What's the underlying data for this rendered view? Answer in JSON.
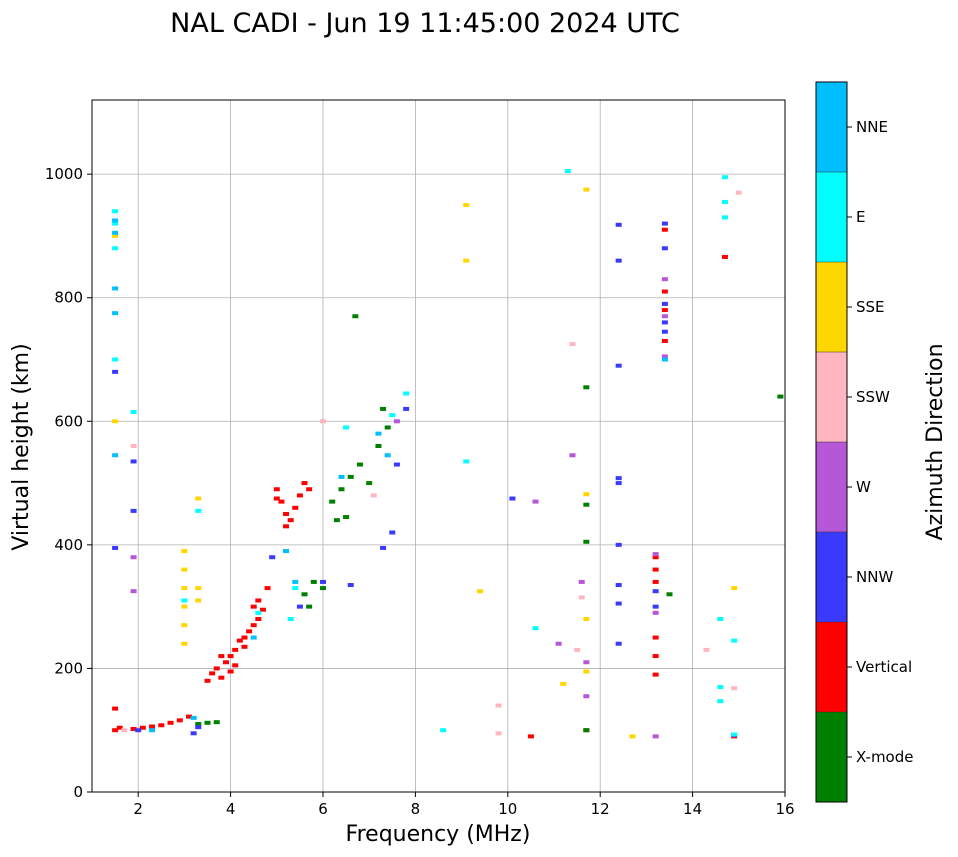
{
  "chart_data": {
    "type": "scatter",
    "title": "NAL CADI - Jun 19 11:45:00 2024 UTC",
    "xlabel": "Frequency (MHz)",
    "ylabel": "Virtual height (km)",
    "xlim": [
      1,
      16
    ],
    "ylim": [
      0,
      1120
    ],
    "xticks": [
      2,
      4,
      6,
      8,
      10,
      12,
      14,
      16
    ],
    "yticks": [
      0,
      200,
      400,
      600,
      800,
      1000
    ],
    "grid": true,
    "colorbar": {
      "label": "Azimuth Direction",
      "categories": [
        {
          "name": "X-mode",
          "color": "#008000"
        },
        {
          "name": "Vertical",
          "color": "#ff0000"
        },
        {
          "name": "NNW",
          "color": "#3a3aff"
        },
        {
          "name": "W",
          "color": "#b557d6"
        },
        {
          "name": "SSW",
          "color": "#ffb6c1"
        },
        {
          "name": "SSE",
          "color": "#ffd700"
        },
        {
          "name": "E",
          "color": "#00ffff"
        },
        {
          "name": "NNE",
          "color": "#00bfff"
        }
      ]
    },
    "series": [
      {
        "name": "Vertical",
        "points": [
          [
            1.5,
            100
          ],
          [
            1.6,
            104
          ],
          [
            1.5,
            135
          ],
          [
            1.9,
            102
          ],
          [
            2.1,
            104
          ],
          [
            2.3,
            106
          ],
          [
            2.5,
            108
          ],
          [
            2.7,
            112
          ],
          [
            2.9,
            116
          ],
          [
            3.1,
            122
          ],
          [
            3.5,
            180
          ],
          [
            3.6,
            192
          ],
          [
            3.7,
            200
          ],
          [
            3.8,
            185
          ],
          [
            3.9,
            210
          ],
          [
            4.0,
            220
          ],
          [
            4.1,
            230
          ],
          [
            4.0,
            195
          ],
          [
            4.2,
            245
          ],
          [
            4.3,
            235
          ],
          [
            4.4,
            260
          ],
          [
            4.5,
            270
          ],
          [
            4.6,
            280
          ],
          [
            4.5,
            300
          ],
          [
            4.6,
            310
          ],
          [
            4.7,
            295
          ],
          [
            4.8,
            330
          ],
          [
            4.3,
            250
          ],
          [
            3.8,
            220
          ],
          [
            4.1,
            205
          ],
          [
            5.0,
            490
          ],
          [
            5.1,
            470
          ],
          [
            5.2,
            450
          ],
          [
            5.3,
            440
          ],
          [
            5.4,
            460
          ],
          [
            5.5,
            480
          ],
          [
            5.6,
            500
          ],
          [
            5.0,
            475
          ],
          [
            5.2,
            430
          ],
          [
            5.7,
            490
          ],
          [
            13.2,
            190
          ],
          [
            13.2,
            220
          ],
          [
            13.2,
            250
          ],
          [
            13.2,
            340
          ],
          [
            13.2,
            360
          ],
          [
            13.2,
            380
          ],
          [
            13.4,
            730
          ],
          [
            13.4,
            780
          ],
          [
            13.4,
            810
          ],
          [
            13.4,
            910
          ],
          [
            14.7,
            866
          ],
          [
            14.9,
            90
          ],
          [
            11.7,
            100
          ],
          [
            10.5,
            90
          ]
        ]
      },
      {
        "name": "X-mode",
        "points": [
          [
            3.3,
            110
          ],
          [
            3.5,
            112
          ],
          [
            3.7,
            113
          ],
          [
            5.6,
            320
          ],
          [
            5.8,
            340
          ],
          [
            5.7,
            300
          ],
          [
            6.3,
            440
          ],
          [
            6.5,
            445
          ],
          [
            6.2,
            470
          ],
          [
            6.4,
            490
          ],
          [
            6.6,
            510
          ],
          [
            6.8,
            530
          ],
          [
            7.0,
            500
          ],
          [
            7.2,
            560
          ],
          [
            7.4,
            590
          ],
          [
            6.0,
            330
          ],
          [
            6.7,
            770
          ],
          [
            7.3,
            620
          ],
          [
            11.7,
            100
          ],
          [
            11.7,
            405
          ],
          [
            11.7,
            465
          ],
          [
            11.7,
            655
          ],
          [
            13.5,
            320
          ],
          [
            15.9,
            640
          ]
        ]
      },
      {
        "name": "NNW",
        "points": [
          [
            1.5,
            395
          ],
          [
            1.5,
            680
          ],
          [
            1.9,
            455
          ],
          [
            1.9,
            535
          ],
          [
            2.0,
            100
          ],
          [
            3.2,
            95
          ],
          [
            3.3,
            105
          ],
          [
            4.9,
            380
          ],
          [
            5.5,
            300
          ],
          [
            6.0,
            340
          ],
          [
            6.6,
            335
          ],
          [
            7.3,
            395
          ],
          [
            7.5,
            420
          ],
          [
            7.6,
            530
          ],
          [
            7.8,
            620
          ],
          [
            10.1,
            475
          ],
          [
            12.4,
            240
          ],
          [
            12.4,
            305
          ],
          [
            12.4,
            335
          ],
          [
            12.4,
            400
          ],
          [
            12.4,
            500
          ],
          [
            12.4,
            508
          ],
          [
            12.4,
            690
          ],
          [
            12.4,
            860
          ],
          [
            12.4,
            918
          ],
          [
            13.2,
            300
          ],
          [
            13.2,
            325
          ],
          [
            13.4,
            745
          ],
          [
            13.4,
            760
          ],
          [
            13.4,
            790
          ],
          [
            13.4,
            880
          ],
          [
            13.4,
            920
          ],
          [
            14.9,
            92
          ]
        ]
      },
      {
        "name": "W",
        "points": [
          [
            1.9,
            325
          ],
          [
            1.9,
            380
          ],
          [
            10.6,
            470
          ],
          [
            11.1,
            240
          ],
          [
            11.4,
            545
          ],
          [
            11.6,
            340
          ],
          [
            11.7,
            155
          ],
          [
            11.7,
            210
          ],
          [
            13.2,
            90
          ],
          [
            13.2,
            385
          ],
          [
            13.2,
            290
          ],
          [
            13.4,
            705
          ],
          [
            13.4,
            770
          ],
          [
            13.4,
            830
          ],
          [
            7.6,
            600
          ]
        ]
      },
      {
        "name": "SSW",
        "points": [
          [
            1.9,
            560
          ],
          [
            1.7,
            100
          ],
          [
            9.8,
            95
          ],
          [
            9.8,
            140
          ],
          [
            11.4,
            725
          ],
          [
            11.5,
            230
          ],
          [
            11.6,
            315
          ],
          [
            14.3,
            230
          ],
          [
            14.9,
            168
          ],
          [
            15.0,
            970
          ],
          [
            6.0,
            600
          ],
          [
            7.1,
            480
          ]
        ]
      },
      {
        "name": "SSE",
        "points": [
          [
            3.0,
            240
          ],
          [
            3.0,
            270
          ],
          [
            3.0,
            300
          ],
          [
            3.0,
            330
          ],
          [
            3.0,
            360
          ],
          [
            3.0,
            390
          ],
          [
            3.3,
            310
          ],
          [
            3.3,
            330
          ],
          [
            3.3,
            475
          ],
          [
            9.1,
            860
          ],
          [
            9.1,
            950
          ],
          [
            9.4,
            325
          ],
          [
            11.2,
            175
          ],
          [
            11.7,
            195
          ],
          [
            11.7,
            280
          ],
          [
            11.7,
            482
          ],
          [
            11.7,
            975
          ],
          [
            12.7,
            90
          ],
          [
            14.9,
            330
          ],
          [
            1.5,
            600
          ],
          [
            1.5,
            900
          ]
        ]
      },
      {
        "name": "E",
        "points": [
          [
            1.5,
            920
          ],
          [
            1.5,
            940
          ],
          [
            1.5,
            880
          ],
          [
            1.5,
            700
          ],
          [
            1.9,
            615
          ],
          [
            3.0,
            310
          ],
          [
            3.3,
            455
          ],
          [
            4.6,
            290
          ],
          [
            5.3,
            280
          ],
          [
            5.4,
            330
          ],
          [
            6.5,
            590
          ],
          [
            7.5,
            610
          ],
          [
            7.8,
            645
          ],
          [
            8.6,
            100
          ],
          [
            9.1,
            535
          ],
          [
            10.6,
            265
          ],
          [
            11.3,
            1005
          ],
          [
            14.6,
            170
          ],
          [
            14.6,
            147
          ],
          [
            14.6,
            280
          ],
          [
            14.7,
            930
          ],
          [
            14.7,
            955
          ],
          [
            14.7,
            995
          ],
          [
            14.9,
            245
          ],
          [
            14.9,
            93
          ]
        ]
      },
      {
        "name": "NNE",
        "points": [
          [
            1.5,
            925
          ],
          [
            1.5,
            905
          ],
          [
            1.5,
            545
          ],
          [
            1.5,
            775
          ],
          [
            1.5,
            815
          ],
          [
            2.3,
            100
          ],
          [
            3.2,
            120
          ],
          [
            4.5,
            250
          ],
          [
            5.2,
            390
          ],
          [
            5.4,
            340
          ],
          [
            6.4,
            510
          ],
          [
            7.2,
            580
          ],
          [
            7.4,
            545
          ],
          [
            13.4,
            700
          ]
        ]
      }
    ]
  }
}
